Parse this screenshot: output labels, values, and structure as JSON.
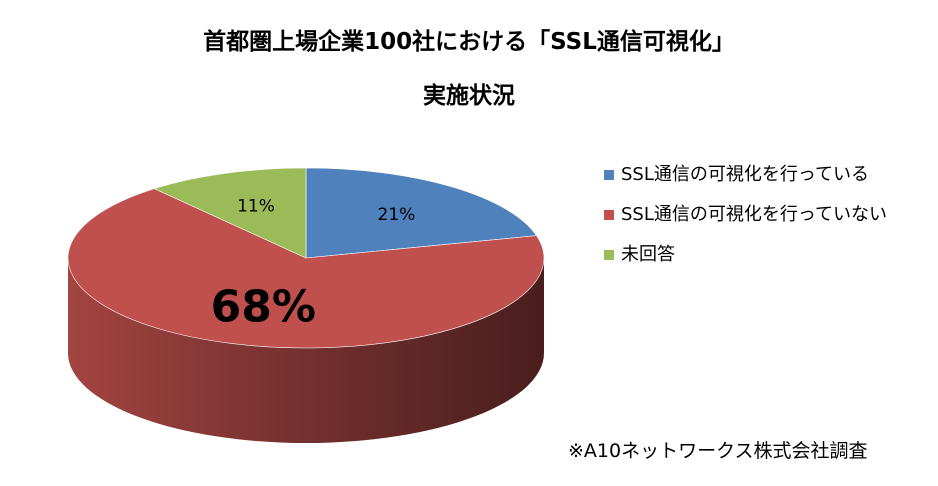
{
  "title_line1": "首都圏上場企業100社における「SSL通信可視化」",
  "title_line2": "実施状況",
  "source_note": "※A10ネットワークス株式会社調査",
  "chart_data": {
    "type": "pie",
    "style": "3d",
    "legend_position": "right",
    "slices": [
      {
        "label": "SSL通信の可視化を行っている",
        "value": 21,
        "data_label": "21%",
        "color": "#4F81BD"
      },
      {
        "label": "SSL通信の可視化を行っていない",
        "value": 68,
        "data_label": "68%",
        "color": "#C0504D"
      },
      {
        "label": "未回答",
        "value": 11,
        "data_label": "11%",
        "color": "#9BBB59"
      }
    ]
  }
}
